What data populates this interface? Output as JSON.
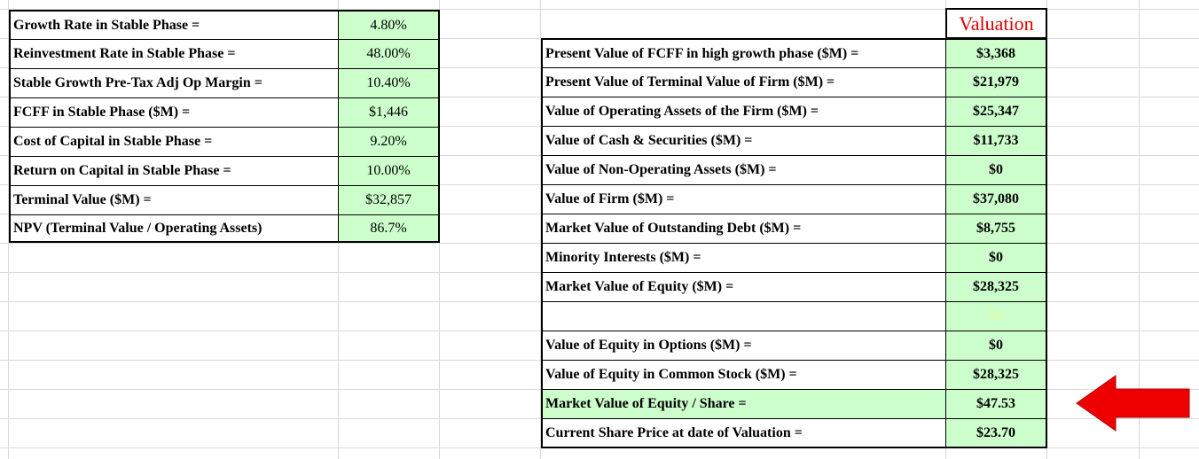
{
  "left_table": {
    "rows": [
      {
        "label": "Growth Rate in Stable Phase =",
        "value": "4.80%"
      },
      {
        "label": "Reinvestment Rate in Stable Phase =",
        "value": "48.00%"
      },
      {
        "label": "Stable Growth Pre-Tax Adj Op Margin =",
        "value": "10.40%"
      },
      {
        "label": "FCFF in Stable Phase ($M) =",
        "value": "$1,446"
      },
      {
        "label": "Cost of Capital in Stable Phase =",
        "value": "9.20%"
      },
      {
        "label": "Return on Capital in Stable Phase =",
        "value": "10.00%"
      },
      {
        "label": "Terminal Value ($M) =",
        "value": "$32,857"
      },
      {
        "label": "NPV (Terminal Value / Operating Assets)",
        "value": "86.7%"
      }
    ]
  },
  "right_table": {
    "header": "Valuation",
    "rows": [
      {
        "label": "Present Value of FCFF in high growth phase ($M) =",
        "value": "$3,368"
      },
      {
        "label": "Present Value of Terminal Value of Firm ($M) =",
        "value": "$21,979"
      },
      {
        "label": "Value of Operating Assets of the Firm ($M) =",
        "value": "$25,347"
      },
      {
        "label": "Value of Cash  & Securities ($M) =",
        "value": "$11,733"
      },
      {
        "label": "Value of Non-Operating Assets ($M) =",
        "value": "$0"
      },
      {
        "label": "Value of Firm ($M) =",
        "value": "$37,080"
      },
      {
        "label": "Market Value of Outstanding Debt ($M) =",
        "value": "$8,755"
      },
      {
        "label": "Minority Interests ($M) =",
        "value": "$0"
      },
      {
        "label": "Market Value of Equity ($M) =",
        "value": "$28,325"
      },
      {
        "label": "",
        "value": "$0"
      },
      {
        "label": "Value of Equity in Options ($M) =",
        "value": "$0"
      },
      {
        "label": "Value of Equity in Common Stock ($M) =",
        "value": "$28,325"
      },
      {
        "label": "Market Value of Equity / Share  =",
        "value": "$47.53"
      },
      {
        "label": "Current Share Price at date of Valuation =",
        "value": "$23.70"
      }
    ]
  },
  "colors": {
    "value_fill": "#ccffcc",
    "header_text": "#e00000",
    "arrow": "#ee0000",
    "gridline": "#d9d9d9"
  },
  "arrow": {
    "icon": "left-arrow-icon"
  }
}
